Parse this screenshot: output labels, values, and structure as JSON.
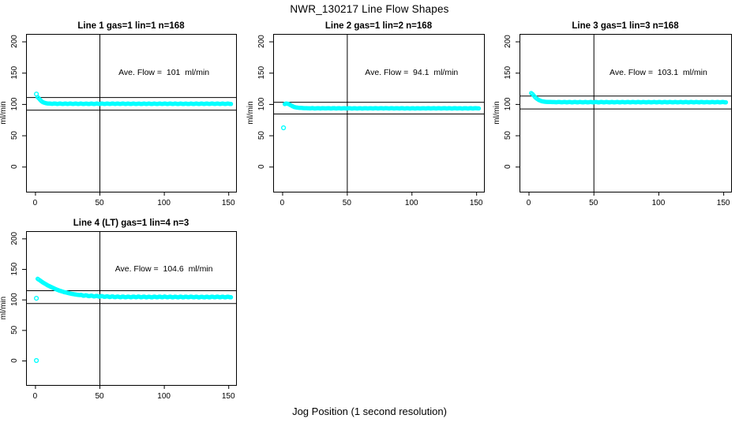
{
  "figure": {
    "title": "NWR_130217  Line Flow Shapes",
    "xlabel": "Jog Position (1 second resolution)",
    "point_color": "#00FFFF",
    "line_color": "#000000",
    "background": "#FFFFFF"
  },
  "chart_data": [
    {
      "type": "scatter",
      "title": "Line 1 gas=1 lin=1 n=168",
      "ylabel": "ml/min",
      "xticks": [
        0,
        50,
        100,
        150
      ],
      "yticks": [
        0,
        50,
        100,
        150,
        200
      ],
      "xlim": [
        -7,
        156
      ],
      "ylim": [
        -40,
        212
      ],
      "n": 168,
      "ave_flow": 101,
      "ave_label": "Ave. Flow =  101  ml/min",
      "hline_upper": 111.1,
      "hline_lower": 90.9,
      "vline": 50,
      "points": [
        [
          2,
          111
        ],
        [
          3,
          109
        ],
        [
          4,
          106.5
        ],
        [
          5,
          104.5
        ],
        [
          6,
          103
        ],
        [
          8,
          101.5
        ],
        [
          10,
          100.9
        ],
        [
          14,
          100.6
        ],
        [
          20,
          100.5
        ],
        [
          30,
          100.5
        ],
        [
          40,
          100.4
        ],
        [
          60,
          100.5
        ],
        [
          80,
          100.4
        ],
        [
          100,
          100.5
        ],
        [
          120,
          100.4
        ],
        [
          140,
          100.5
        ],
        [
          152,
          100.4
        ]
      ],
      "outliers": [
        [
          1,
          116
        ]
      ]
    },
    {
      "type": "scatter",
      "title": "Line 2 gas=1 lin=2 n=168",
      "ylabel": "ml/min",
      "xticks": [
        0,
        50,
        100,
        150
      ],
      "yticks": [
        0,
        50,
        100,
        150,
        200
      ],
      "xlim": [
        -7,
        156
      ],
      "ylim": [
        -40,
        212
      ],
      "n": 168,
      "ave_flow": 94.1,
      "ave_label": "Ave. Flow =  94.1  ml/min",
      "hline_upper": 103.5,
      "hline_lower": 84.7,
      "vline": 50,
      "points": [
        [
          2,
          100
        ],
        [
          3,
          101
        ],
        [
          5,
          100
        ],
        [
          7,
          97.5
        ],
        [
          9,
          95.5
        ],
        [
          11,
          94.5
        ],
        [
          14,
          93.8
        ],
        [
          18,
          93.4
        ],
        [
          25,
          93.2
        ],
        [
          40,
          93.2
        ],
        [
          60,
          93.1
        ],
        [
          80,
          93.2
        ],
        [
          100,
          93.1
        ],
        [
          120,
          93.2
        ],
        [
          140,
          93.1
        ],
        [
          152,
          93.2
        ]
      ],
      "outliers": [
        [
          1,
          62
        ]
      ]
    },
    {
      "type": "scatter",
      "title": "Line 3 gas=1 lin=3 n=168",
      "ylabel": "ml/min",
      "xticks": [
        0,
        50,
        100,
        150
      ],
      "yticks": [
        0,
        50,
        100,
        150,
        200
      ],
      "xlim": [
        -7,
        156
      ],
      "ylim": [
        -40,
        212
      ],
      "n": 168,
      "ave_flow": 103.1,
      "ave_label": "Ave. Flow =  103.1  ml/min",
      "hline_upper": 113.4,
      "hline_lower": 92.8,
      "vline": 50,
      "points": [
        [
          2,
          117.5
        ],
        [
          3,
          116
        ],
        [
          4,
          113.5
        ],
        [
          5,
          111
        ],
        [
          6,
          109
        ],
        [
          8,
          106.3
        ],
        [
          10,
          104.7
        ],
        [
          12,
          103.8
        ],
        [
          15,
          103.3
        ],
        [
          20,
          103.1
        ],
        [
          30,
          103
        ],
        [
          50,
          103
        ],
        [
          70,
          103
        ],
        [
          90,
          103
        ],
        [
          110,
          103
        ],
        [
          130,
          103
        ],
        [
          152,
          103
        ]
      ],
      "outliers": []
    },
    {
      "type": "scatter",
      "title": "Line 4 (LT) gas=1 lin=4 n=3",
      "ylabel": "ml/min",
      "xticks": [
        0,
        50,
        100,
        150
      ],
      "yticks": [
        0,
        50,
        100,
        150,
        200
      ],
      "xlim": [
        -7,
        156
      ],
      "ylim": [
        -40,
        212
      ],
      "n": 3,
      "ave_flow": 104.6,
      "ave_label": "Ave. Flow =  104.6  ml/min",
      "hline_upper": 115.1,
      "hline_lower": 94.1,
      "vline": 50,
      "points": [
        [
          2,
          134
        ],
        [
          4,
          131
        ],
        [
          6,
          128
        ],
        [
          8,
          125.5
        ],
        [
          10,
          123
        ],
        [
          13,
          120
        ],
        [
          16,
          117
        ],
        [
          19,
          114.5
        ],
        [
          22,
          112.5
        ],
        [
          25,
          111
        ],
        [
          28,
          109.5
        ],
        [
          32,
          108
        ],
        [
          36,
          107
        ],
        [
          40,
          106.3
        ],
        [
          45,
          105.7
        ],
        [
          50,
          105.2
        ],
        [
          55,
          104.8
        ],
        [
          60,
          104.5
        ],
        [
          70,
          104.2
        ],
        [
          80,
          104.3
        ],
        [
          90,
          104.1
        ],
        [
          100,
          104.3
        ],
        [
          110,
          104.1
        ],
        [
          120,
          104.2
        ],
        [
          130,
          104.0
        ],
        [
          140,
          104.2
        ],
        [
          152,
          104.1
        ]
      ],
      "outliers": [
        [
          1,
          0
        ],
        [
          1,
          102
        ]
      ]
    }
  ]
}
